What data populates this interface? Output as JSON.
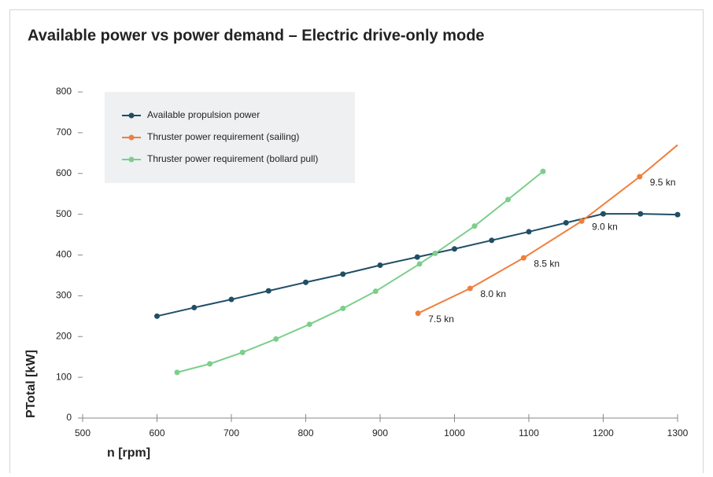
{
  "chart_data": {
    "type": "line",
    "title": "Available power vs power demand – Electric drive-only mode",
    "x_label": "n [rpm]",
    "y_label": "PTotal [kW]",
    "xlim": [
      500,
      1300
    ],
    "xticks": [
      500,
      600,
      700,
      800,
      900,
      1000,
      1100,
      1200,
      1300
    ],
    "ylim": [
      0,
      800
    ],
    "yticks": [
      0,
      100,
      200,
      300,
      400,
      500,
      600,
      700,
      800
    ],
    "grid": false,
    "legend": "upper left",
    "series": [
      {
        "name": "Available propulsion power",
        "color": "#1f4e66",
        "x": [
          600,
          650,
          700,
          750,
          800,
          850,
          900,
          950,
          1000,
          1050,
          1100,
          1150,
          1200,
          1250,
          1300
        ],
        "values": [
          250,
          271,
          291,
          312,
          333,
          353,
          375,
          395,
          415,
          436,
          457,
          479,
          501,
          501,
          499
        ]
      },
      {
        "name": "Thruster power requirement (sailing)",
        "color": "#f07f3c",
        "x": [
          951,
          1021,
          1093,
          1171,
          1249,
          1300
        ],
        "values": [
          257,
          318,
          393,
          483,
          592,
          670
        ],
        "point_labels": [
          "7.5 kn",
          "8.0 kn",
          "8.5 kn",
          "9.0 kn",
          "9.5 kn",
          null
        ]
      },
      {
        "name": "Thruster power requirement (bollard pull)",
        "color": "#7ccf8b",
        "x": [
          627,
          671,
          715,
          760,
          805,
          850,
          894,
          953,
          974,
          1027,
          1072,
          1119
        ],
        "values": [
          112,
          133,
          161,
          194,
          230,
          269,
          311,
          378,
          404,
          471,
          536,
          605
        ]
      }
    ]
  }
}
